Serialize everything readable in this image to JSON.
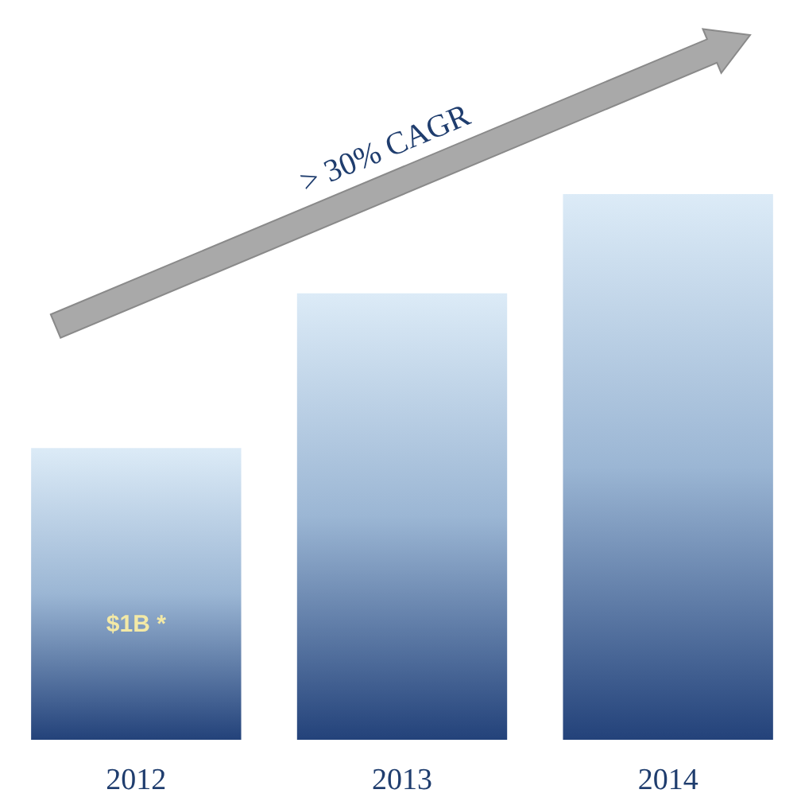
{
  "chart_data": {
    "type": "bar",
    "categories": [
      "2012",
      "2013",
      "2014"
    ],
    "values": [
      1,
      1.53,
      1.87
    ],
    "value_labels": [
      "$1B *",
      null,
      null
    ],
    "color": "#23427a",
    "annotations": [
      "> 30% CAGR"
    ]
  }
}
